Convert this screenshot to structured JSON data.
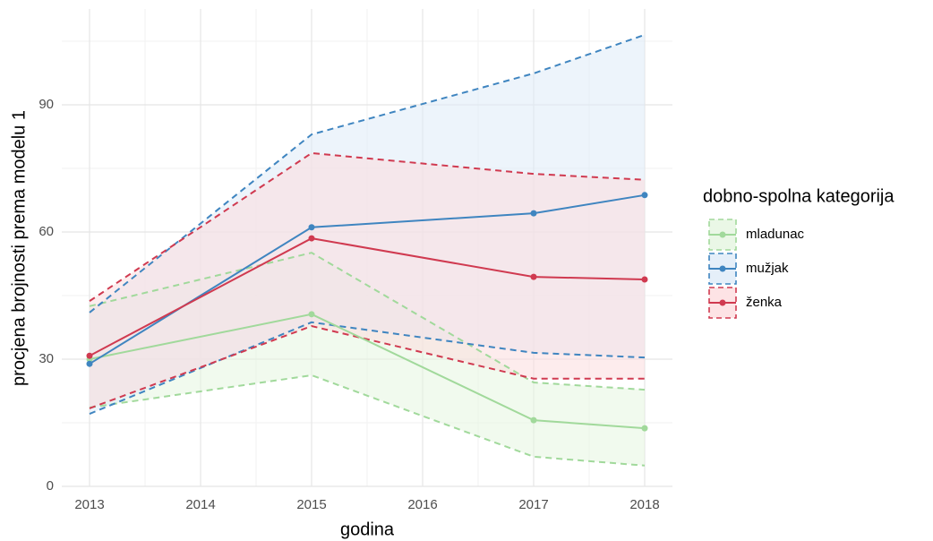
{
  "chart_data": {
    "type": "line",
    "xlabel": "godina",
    "ylabel": "procjena brojnosti prema modelu 1",
    "legend_title": "dobno-spolna kategorija",
    "legend": "right",
    "grid": true,
    "x": [
      2013,
      2015,
      2017,
      2018
    ],
    "xlim": [
      2012.75,
      2018.25
    ],
    "xticks": [
      2013,
      2014,
      2015,
      2016,
      2017,
      2018
    ],
    "ylim": [
      0,
      112.6
    ],
    "yticks": [
      0,
      30,
      60,
      90
    ],
    "series": [
      {
        "name": "mladunac",
        "color": "#a1d99b",
        "fill": "#e5f5e0",
        "values": [
          30,
          40.6,
          15.6,
          13.7
        ],
        "lower": [
          18.6,
          26.2,
          7,
          4.9
        ],
        "upper": [
          42.5,
          55.1,
          24.5,
          22.8
        ]
      },
      {
        "name": "mužjak",
        "color": "#3f85c0",
        "fill": "#deebf7",
        "values": [
          28.9,
          61.1,
          64.4,
          68.7
        ],
        "lower": [
          17.1,
          38.7,
          31.5,
          30.4
        ],
        "upper": [
          41,
          83,
          97.4,
          106.5
        ]
      },
      {
        "name": "ženka",
        "color": "#d03a50",
        "fill": "#fcdcdf",
        "values": [
          30.8,
          58.5,
          49.4,
          48.8
        ],
        "lower": [
          18.4,
          37.8,
          25.4,
          25.4
        ],
        "upper": [
          43.7,
          78.6,
          73.7,
          72.3
        ]
      }
    ]
  }
}
